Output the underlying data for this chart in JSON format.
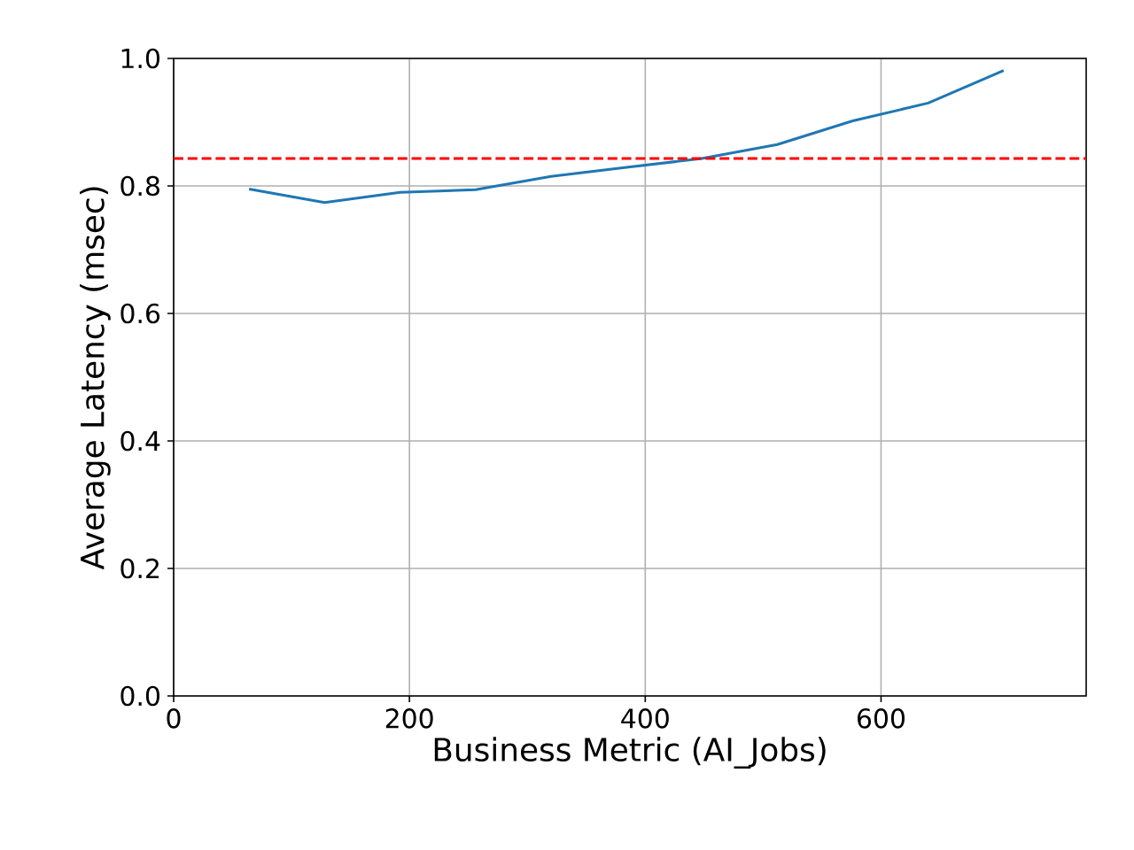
{
  "chart_data": {
    "type": "line",
    "xlabel": "Business Metric (AI_Jobs)",
    "ylabel": "Average Latency (msec)",
    "x": [
      64,
      128,
      192,
      256,
      320,
      384,
      448,
      512,
      576,
      640,
      704
    ],
    "series": [
      {
        "color": "#1f77b4",
        "values": [
          0.795,
          0.774,
          0.79,
          0.794,
          0.815,
          0.829,
          0.843,
          0.865,
          0.902,
          0.93,
          0.981
        ]
      }
    ],
    "xlim": [
      0,
      774
    ],
    "ylim": [
      0,
      1.0
    ],
    "xticks": [
      0,
      200,
      400,
      600
    ],
    "yticks": [
      {
        "value": 0,
        "label": "0.0"
      },
      0.2,
      0.4,
      0.6,
      0.8,
      {
        "value": 1,
        "label": "1.0"
      }
    ],
    "ref_lines": [
      {
        "axis": "y",
        "value": 0.843,
        "color": "#ff0000",
        "line_style": "dashed"
      }
    ],
    "grid": true,
    "marker": "none",
    "line_style": "solid"
  }
}
